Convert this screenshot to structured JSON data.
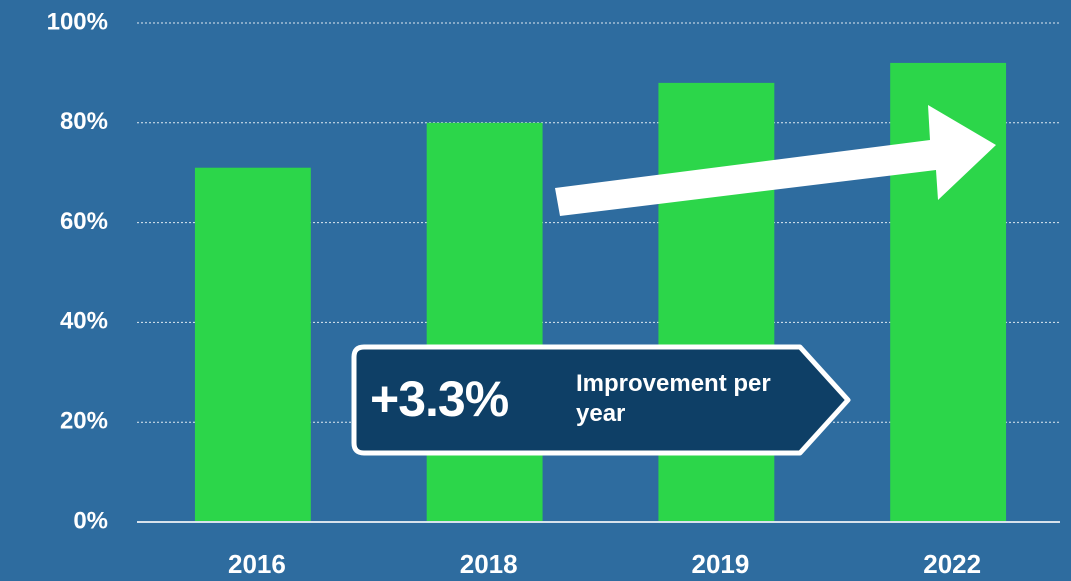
{
  "chart_data": {
    "type": "bar",
    "categories": [
      "2016",
      "2018",
      "2019",
      "2022"
    ],
    "values": [
      71,
      80,
      88,
      92
    ],
    "color": "#2cd64a",
    "ylim": [
      0,
      100
    ],
    "yticks": [
      {
        "value": 0,
        "label": "0%"
      },
      {
        "value": 20,
        "label": "20%"
      },
      {
        "value": 40,
        "label": "40%"
      },
      {
        "value": 60,
        "label": "60%"
      },
      {
        "value": 80,
        "label": "80%"
      },
      {
        "value": 100,
        "label": "100%"
      }
    ],
    "grid": true,
    "annotation_value": "+3.3%",
    "annotation_text": "Improvement per year"
  }
}
